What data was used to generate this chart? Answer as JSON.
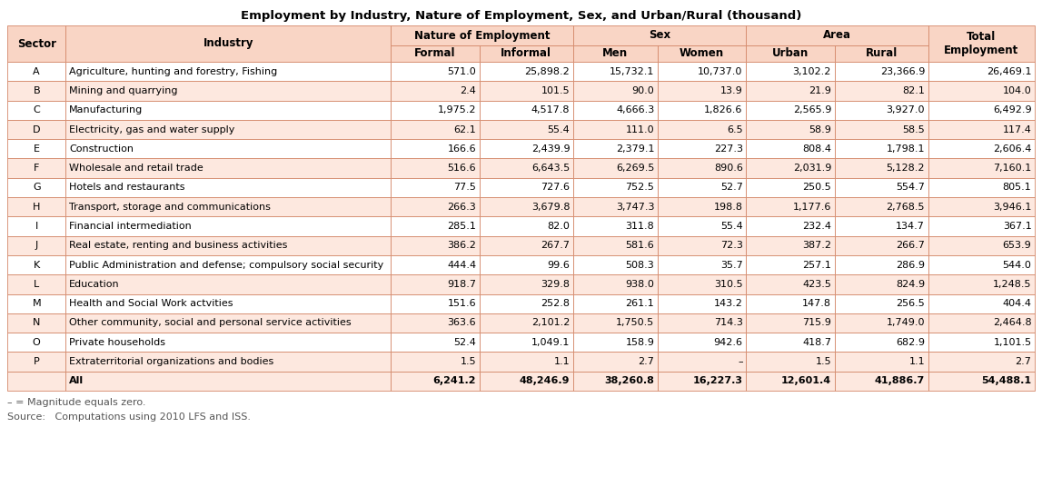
{
  "title": "Employment by Industry, Nature of Employment, Sex, and Urban/Rural (thousand)",
  "rows": [
    [
      "A",
      "Agriculture, hunting and forestry, Fishing",
      "571.0",
      "25,898.2",
      "15,732.1",
      "10,737.0",
      "3,102.2",
      "23,366.9",
      "26,469.1"
    ],
    [
      "B",
      "Mining and quarrying",
      "2.4",
      "101.5",
      "90.0",
      "13.9",
      "21.9",
      "82.1",
      "104.0"
    ],
    [
      "C",
      "Manufacturing",
      "1,975.2",
      "4,517.8",
      "4,666.3",
      "1,826.6",
      "2,565.9",
      "3,927.0",
      "6,492.9"
    ],
    [
      "D",
      "Electricity, gas and water supply",
      "62.1",
      "55.4",
      "111.0",
      "6.5",
      "58.9",
      "58.5",
      "117.4"
    ],
    [
      "E",
      "Construction",
      "166.6",
      "2,439.9",
      "2,379.1",
      "227.3",
      "808.4",
      "1,798.1",
      "2,606.4"
    ],
    [
      "F",
      "Wholesale and retail trade",
      "516.6",
      "6,643.5",
      "6,269.5",
      "890.6",
      "2,031.9",
      "5,128.2",
      "7,160.1"
    ],
    [
      "G",
      "Hotels and restaurants",
      "77.5",
      "727.6",
      "752.5",
      "52.7",
      "250.5",
      "554.7",
      "805.1"
    ],
    [
      "H",
      "Transport, storage and communications",
      "266.3",
      "3,679.8",
      "3,747.3",
      "198.8",
      "1,177.6",
      "2,768.5",
      "3,946.1"
    ],
    [
      "I",
      "Financial intermediation",
      "285.1",
      "82.0",
      "311.8",
      "55.4",
      "232.4",
      "134.7",
      "367.1"
    ],
    [
      "J",
      "Real estate, renting and business activities",
      "386.2",
      "267.7",
      "581.6",
      "72.3",
      "387.2",
      "266.7",
      "653.9"
    ],
    [
      "K",
      "Public Administration and defense; compulsory social security",
      "444.4",
      "99.6",
      "508.3",
      "35.7",
      "257.1",
      "286.9",
      "544.0"
    ],
    [
      "L",
      "Education",
      "918.7",
      "329.8",
      "938.0",
      "310.5",
      "423.5",
      "824.9",
      "1,248.5"
    ],
    [
      "M",
      "Health and Social Work actvities",
      "151.6",
      "252.8",
      "261.1",
      "143.2",
      "147.8",
      "256.5",
      "404.4"
    ],
    [
      "N",
      "Other community, social and personal service activities",
      "363.6",
      "2,101.2",
      "1,750.5",
      "714.3",
      "715.9",
      "1,749.0",
      "2,464.8"
    ],
    [
      "O",
      "Private households",
      "52.4",
      "1,049.1",
      "158.9",
      "942.6",
      "418.7",
      "682.9",
      "1,101.5"
    ],
    [
      "P",
      "Extraterritorial organizations and bodies",
      "1.5",
      "1.1",
      "2.7",
      "–",
      "1.5",
      "1.1",
      "2.7"
    ],
    [
      "",
      "All",
      "6,241.2",
      "48,246.9",
      "38,260.8",
      "16,227.3",
      "12,601.4",
      "41,886.7",
      "54,488.1"
    ]
  ],
  "footnote1": "– = Magnitude equals zero.",
  "footnote2": "Source:   Computations using 2010 LFS and ISS.",
  "header_bg": "#f9d5c5",
  "row_bg_odd": "#ffffff",
  "row_bg_even": "#fde8df",
  "row_bg_last": "#fde8df",
  "border_color": "#d4886a",
  "title_fontsize": 9.5,
  "cell_fontsize": 8.0,
  "header_fontsize": 8.5
}
